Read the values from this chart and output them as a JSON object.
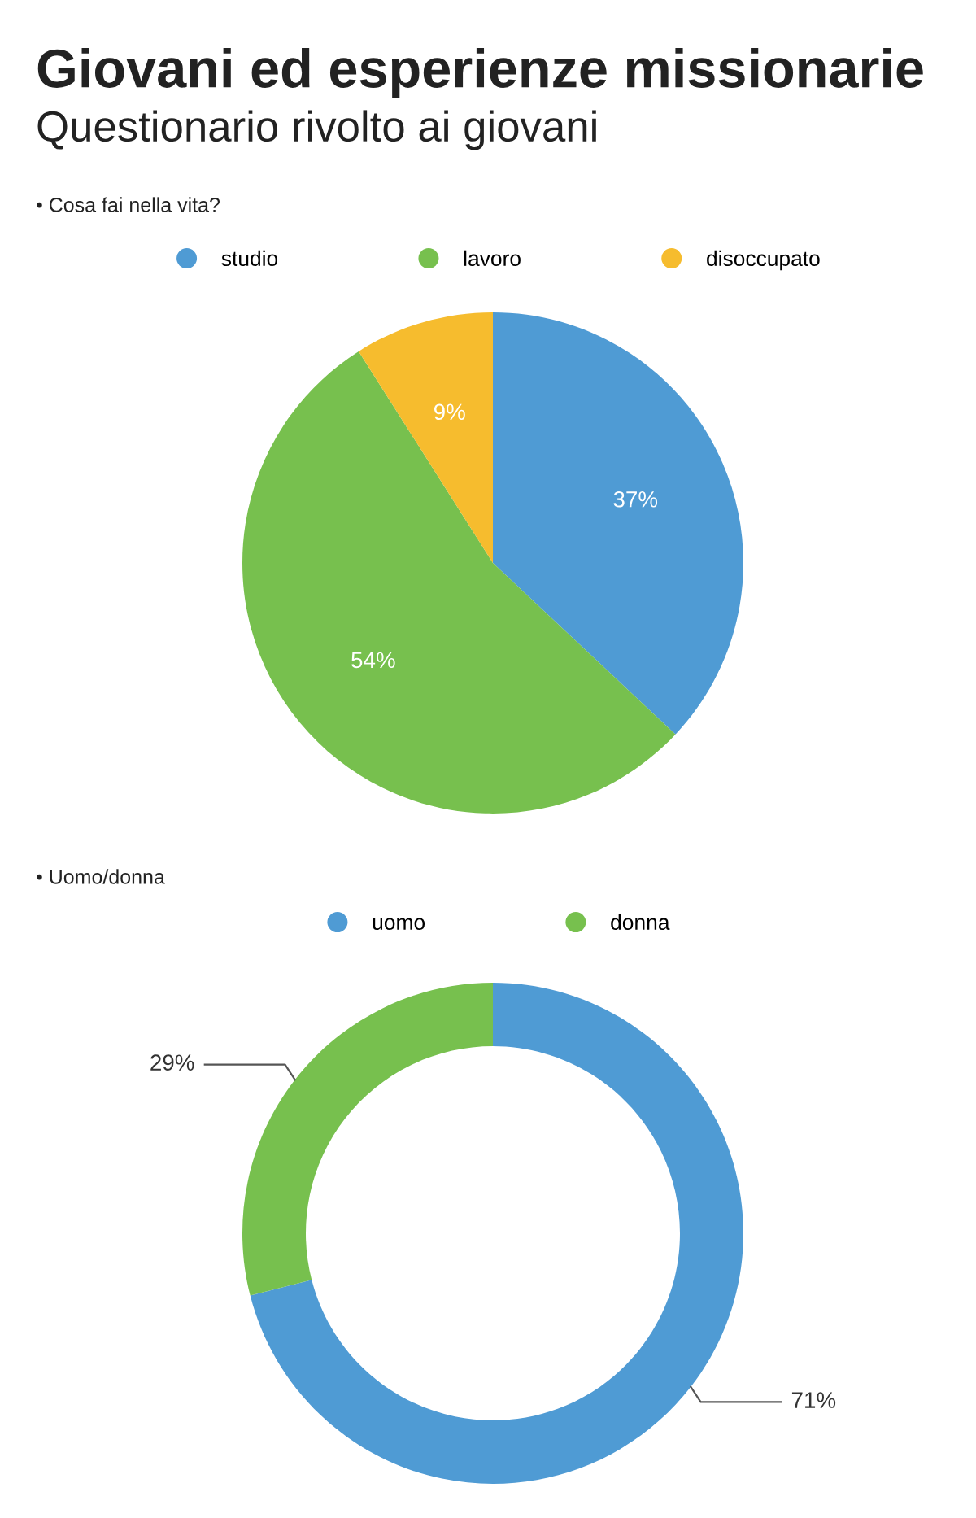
{
  "chart_data": [
    {
      "type": "pie",
      "title": "Giovani ed esperienze missionarie",
      "subtitle": "Questionario rivolto ai giovani",
      "annotations": [
        "• Cosa fai nella vita?"
      ],
      "categories": [
        "studio",
        "lavoro",
        "disoccupato"
      ],
      "values": [
        37,
        54,
        9
      ],
      "colors": [
        "#4f9bd4",
        "#77c04e",
        "#f6bc2e"
      ],
      "value_labels": [
        "37%",
        "54%",
        "9%"
      ],
      "legend": "top"
    },
    {
      "type": "donut",
      "annotations": [
        "• Uomo/donna"
      ],
      "categories": [
        "uomo",
        "donna"
      ],
      "values": [
        71,
        29
      ],
      "colors": [
        "#4f9bd4",
        "#77c04e"
      ],
      "value_labels": [
        "71%",
        "29%"
      ],
      "legend": "top"
    }
  ]
}
